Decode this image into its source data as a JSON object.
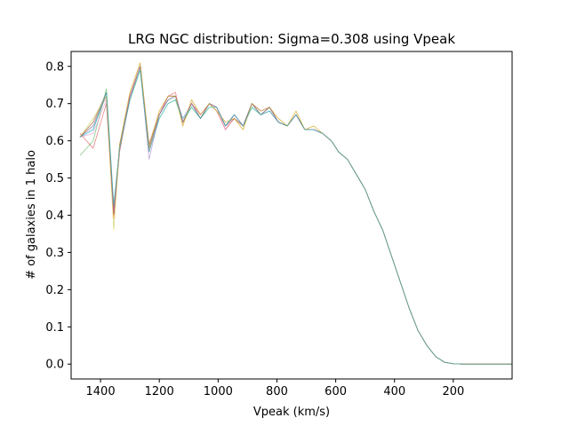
{
  "chart_data": {
    "type": "line",
    "title": "LRG NGC distribution: Sigma=0.308 using Vpeak",
    "xlabel": "Vpeak (km/s)",
    "ylabel": "# of galaxies in 1 halo",
    "xlim": [
      1500,
      0
    ],
    "ylim": [
      -0.04,
      0.84
    ],
    "x_inverted": true,
    "grid": false,
    "x_ticks": [
      {
        "value": 1400,
        "label": "1400"
      },
      {
        "value": 1200,
        "label": "1200"
      },
      {
        "value": 1000,
        "label": "1000"
      },
      {
        "value": 800,
        "label": "800"
      },
      {
        "value": 600,
        "label": "600"
      },
      {
        "value": 400,
        "label": "400"
      },
      {
        "value": 200,
        "label": "200"
      }
    ],
    "y_ticks": [
      {
        "value": 0.0,
        "label": "0.0"
      },
      {
        "value": 0.1,
        "label": "0.1"
      },
      {
        "value": 0.2,
        "label": "0.2"
      },
      {
        "value": 0.3,
        "label": "0.3"
      },
      {
        "value": 0.4,
        "label": "0.4"
      },
      {
        "value": 0.5,
        "label": "0.5"
      },
      {
        "value": 0.6,
        "label": "0.6"
      },
      {
        "value": 0.7,
        "label": "0.7"
      },
      {
        "value": 0.8,
        "label": "0.8"
      }
    ],
    "x": [
      1470,
      1425,
      1380,
      1355,
      1335,
      1300,
      1265,
      1235,
      1200,
      1170,
      1145,
      1120,
      1090,
      1060,
      1030,
      1005,
      975,
      945,
      915,
      885,
      855,
      825,
      795,
      765,
      735,
      705,
      675,
      645,
      615,
      590,
      560,
      530,
      500,
      470,
      440,
      410,
      380,
      350,
      320,
      290,
      260,
      230,
      200,
      170,
      140,
      110,
      80,
      50,
      20,
      0
    ],
    "series": [
      {
        "color": "#1f77b4",
        "values": [
          0.61,
          0.63,
          0.73,
          0.41,
          0.58,
          0.72,
          0.8,
          0.58,
          0.67,
          0.71,
          0.72,
          0.65,
          0.7,
          0.66,
          0.7,
          0.69,
          0.64,
          0.67,
          0.64,
          0.7,
          0.67,
          0.69,
          0.65,
          0.64,
          0.67,
          0.63,
          0.63,
          0.62,
          0.6,
          0.57,
          0.55,
          0.51,
          0.47,
          0.41,
          0.36,
          0.29,
          0.22,
          0.15,
          0.09,
          0.05,
          0.02,
          0.005,
          0.001,
          0.0,
          0.0,
          0.0,
          0.0,
          0.0,
          0.0,
          0.0
        ]
      },
      {
        "color": "#ff7f0e",
        "values": [
          0.61,
          0.65,
          0.72,
          0.39,
          0.59,
          0.73,
          0.81,
          0.59,
          0.68,
          0.72,
          0.73,
          0.64,
          0.71,
          0.67,
          0.7,
          0.68,
          0.65,
          0.66,
          0.63,
          0.7,
          0.68,
          0.69,
          0.66,
          0.64,
          0.68,
          0.63,
          0.64,
          0.62,
          0.6,
          0.57,
          0.55,
          0.51,
          0.47,
          0.41,
          0.36,
          0.29,
          0.22,
          0.15,
          0.09,
          0.05,
          0.02,
          0.005,
          0.001,
          0.0,
          0.0,
          0.0,
          0.0,
          0.0,
          0.0,
          0.0
        ]
      },
      {
        "color": "#2ca02c",
        "values": [
          0.56,
          0.6,
          0.74,
          0.42,
          0.58,
          0.71,
          0.79,
          0.57,
          0.66,
          0.7,
          0.71,
          0.65,
          0.69,
          0.66,
          0.69,
          0.69,
          0.64,
          0.67,
          0.64,
          0.69,
          0.67,
          0.68,
          0.65,
          0.64,
          0.67,
          0.63,
          0.63,
          0.62,
          0.6,
          0.57,
          0.55,
          0.51,
          0.47,
          0.41,
          0.36,
          0.29,
          0.22,
          0.15,
          0.09,
          0.05,
          0.02,
          0.005,
          0.001,
          0.0,
          0.0,
          0.0,
          0.0,
          0.0,
          0.0,
          0.0
        ]
      },
      {
        "color": "#d62728",
        "values": [
          0.62,
          0.58,
          0.7,
          0.4,
          0.57,
          0.72,
          0.8,
          0.58,
          0.67,
          0.72,
          0.72,
          0.65,
          0.7,
          0.67,
          0.7,
          0.68,
          0.63,
          0.66,
          0.64,
          0.7,
          0.68,
          0.69,
          0.65,
          0.64,
          0.67,
          0.63,
          0.63,
          0.62,
          0.6,
          0.57,
          0.55,
          0.51,
          0.47,
          0.41,
          0.36,
          0.29,
          0.22,
          0.15,
          0.09,
          0.05,
          0.02,
          0.005,
          0.001,
          0.0,
          0.0,
          0.0,
          0.0,
          0.0,
          0.0,
          0.0
        ]
      },
      {
        "color": "#9467bd",
        "values": [
          0.61,
          0.64,
          0.72,
          0.41,
          0.58,
          0.72,
          0.8,
          0.55,
          0.67,
          0.71,
          0.72,
          0.66,
          0.7,
          0.66,
          0.7,
          0.69,
          0.64,
          0.67,
          0.64,
          0.7,
          0.67,
          0.68,
          0.65,
          0.64,
          0.67,
          0.63,
          0.63,
          0.62,
          0.6,
          0.57,
          0.55,
          0.51,
          0.47,
          0.41,
          0.36,
          0.29,
          0.22,
          0.15,
          0.09,
          0.05,
          0.02,
          0.005,
          0.001,
          0.0,
          0.0,
          0.0,
          0.0,
          0.0,
          0.0,
          0.0
        ]
      },
      {
        "color": "#8c564b",
        "values": [
          0.61,
          0.65,
          0.73,
          0.4,
          0.59,
          0.72,
          0.8,
          0.59,
          0.67,
          0.72,
          0.72,
          0.65,
          0.7,
          0.66,
          0.7,
          0.69,
          0.64,
          0.66,
          0.64,
          0.7,
          0.67,
          0.69,
          0.65,
          0.64,
          0.67,
          0.63,
          0.63,
          0.62,
          0.6,
          0.57,
          0.55,
          0.51,
          0.47,
          0.41,
          0.36,
          0.29,
          0.22,
          0.15,
          0.09,
          0.05,
          0.02,
          0.005,
          0.001,
          0.0,
          0.0,
          0.0,
          0.0,
          0.0,
          0.0,
          0.0
        ]
      },
      {
        "color": "#e377c2",
        "values": [
          0.61,
          0.62,
          0.71,
          0.41,
          0.58,
          0.72,
          0.8,
          0.57,
          0.67,
          0.72,
          0.73,
          0.65,
          0.7,
          0.67,
          0.7,
          0.69,
          0.63,
          0.67,
          0.64,
          0.7,
          0.68,
          0.69,
          0.65,
          0.64,
          0.67,
          0.63,
          0.63,
          0.62,
          0.6,
          0.57,
          0.55,
          0.51,
          0.47,
          0.41,
          0.36,
          0.29,
          0.22,
          0.15,
          0.09,
          0.05,
          0.02,
          0.005,
          0.001,
          0.0,
          0.0,
          0.0,
          0.0,
          0.0,
          0.0,
          0.0
        ]
      },
      {
        "color": "#7f7f7f",
        "values": [
          0.61,
          0.64,
          0.73,
          0.42,
          0.58,
          0.71,
          0.8,
          0.58,
          0.67,
          0.71,
          0.72,
          0.65,
          0.7,
          0.66,
          0.7,
          0.69,
          0.64,
          0.67,
          0.64,
          0.7,
          0.67,
          0.69,
          0.65,
          0.64,
          0.67,
          0.63,
          0.63,
          0.62,
          0.6,
          0.57,
          0.55,
          0.51,
          0.47,
          0.41,
          0.36,
          0.29,
          0.22,
          0.15,
          0.09,
          0.05,
          0.02,
          0.005,
          0.001,
          0.0,
          0.0,
          0.0,
          0.0,
          0.0,
          0.0,
          0.0
        ]
      },
      {
        "color": "#bcbd22",
        "values": [
          0.61,
          0.66,
          0.72,
          0.36,
          0.59,
          0.73,
          0.81,
          0.58,
          0.68,
          0.72,
          0.72,
          0.64,
          0.71,
          0.67,
          0.7,
          0.68,
          0.65,
          0.66,
          0.63,
          0.7,
          0.68,
          0.69,
          0.66,
          0.64,
          0.68,
          0.63,
          0.64,
          0.62,
          0.6,
          0.57,
          0.55,
          0.51,
          0.47,
          0.41,
          0.36,
          0.29,
          0.22,
          0.15,
          0.09,
          0.05,
          0.02,
          0.005,
          0.001,
          0.0,
          0.0,
          0.0,
          0.0,
          0.0,
          0.0,
          0.0
        ]
      },
      {
        "color": "#17becf",
        "values": [
          0.61,
          0.63,
          0.73,
          0.43,
          0.58,
          0.71,
          0.79,
          0.57,
          0.66,
          0.7,
          0.71,
          0.66,
          0.69,
          0.66,
          0.69,
          0.69,
          0.64,
          0.67,
          0.64,
          0.69,
          0.67,
          0.68,
          0.65,
          0.64,
          0.67,
          0.63,
          0.63,
          0.62,
          0.6,
          0.57,
          0.55,
          0.51,
          0.47,
          0.41,
          0.36,
          0.29,
          0.22,
          0.15,
          0.09,
          0.05,
          0.02,
          0.005,
          0.001,
          0.0,
          0.0,
          0.0,
          0.0,
          0.0,
          0.0,
          0.0
        ]
      }
    ]
  }
}
